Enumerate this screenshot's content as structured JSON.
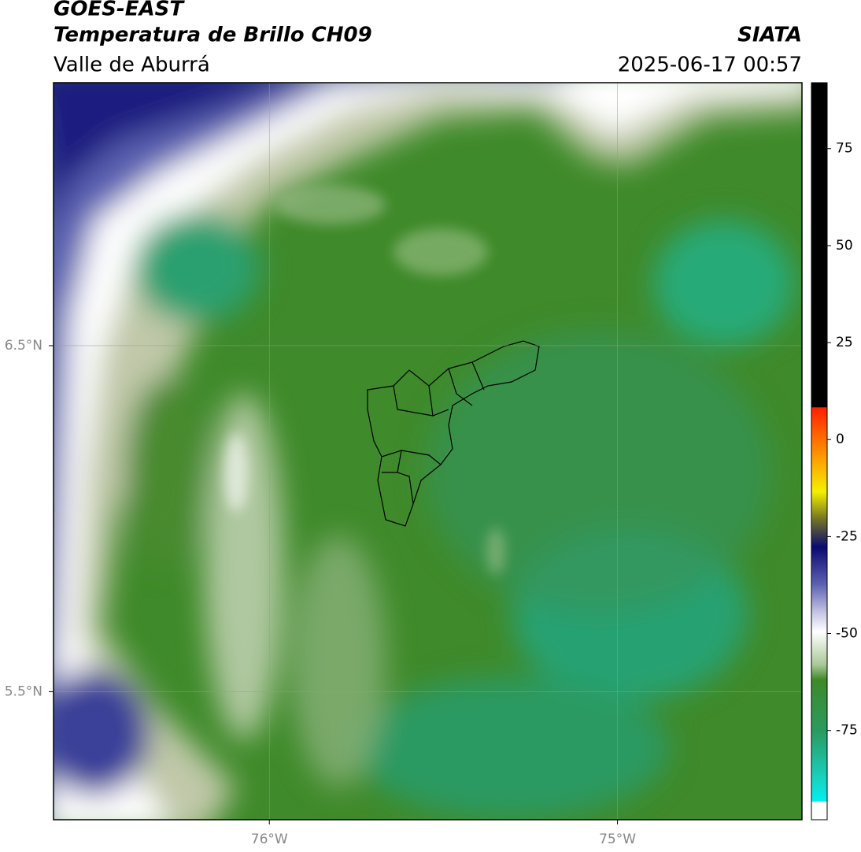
{
  "chart_data": {
    "type": "map",
    "title": "GOES-EAST",
    "subtitle": "Temperatura de Brillo CH09",
    "region": "Valle de Aburrá",
    "source": "SIATA",
    "date": "2025-06-17 00:57",
    "xlim": [
      -76.62,
      -74.47
    ],
    "ylim": [
      5.13,
      7.26
    ],
    "xticks": [
      {
        "value": -76,
        "label": "76°W"
      },
      {
        "value": -75,
        "label": "75°W"
      }
    ],
    "yticks": [
      {
        "value": 6.5,
        "label": "6.5°N"
      },
      {
        "value": 5.5,
        "label": "5.5°N"
      }
    ],
    "grid": true,
    "colorbar": {
      "lim": [
        -98,
        92
      ],
      "ticks": [
        75,
        50,
        25,
        0,
        -25,
        -50,
        -75
      ]
    }
  }
}
